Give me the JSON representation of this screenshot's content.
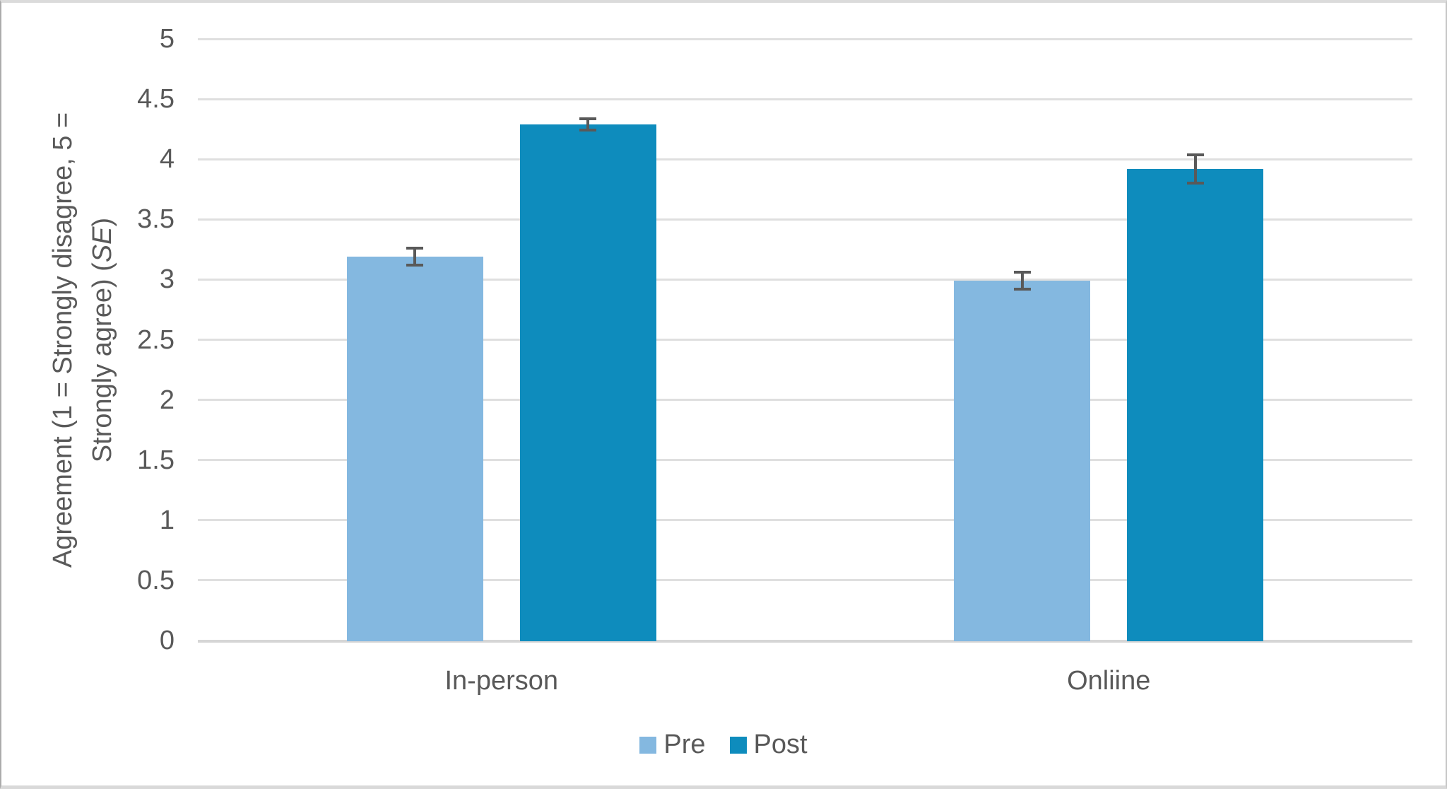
{
  "chart_data": {
    "type": "bar",
    "title": "",
    "categories": [
      "In-person",
      "Onliine"
    ],
    "series": [
      {
        "name": "Pre",
        "color": "#84B8E0",
        "values": [
          3.19,
          2.99
        ],
        "se": [
          0.08,
          0.08
        ]
      },
      {
        "name": "Post",
        "color": "#0E8CBD",
        "values": [
          4.29,
          3.92
        ],
        "se": [
          0.06,
          0.13
        ]
      }
    ],
    "ylabel_line1": "Agreement (1 = Strongly disagree, 5 =",
    "ylabel_line2_pre": "Strongly agree) (",
    "ylabel_italic": "SE",
    "ylabel_line2_post": ")",
    "ylabel_full": "Agreement (1 = Strongly disagree, 5 = Strongly agree) (SE)",
    "xlabel": "",
    "ylim": [
      0,
      5
    ],
    "ytick_step": 0.5,
    "yticks": [
      "0",
      "0.5",
      "1",
      "1.5",
      "2",
      "2.5",
      "3",
      "3.5",
      "4",
      "4.5",
      "5"
    ],
    "grid": true,
    "legend_position": "bottom",
    "colors": {
      "pre_bar": "#84B8E0",
      "post_bar": "#0E8CBD",
      "gridline": "#DFDFDF",
      "axis_line": "#D6D6D6",
      "error_bar": "#595959",
      "text": "#595959"
    }
  }
}
